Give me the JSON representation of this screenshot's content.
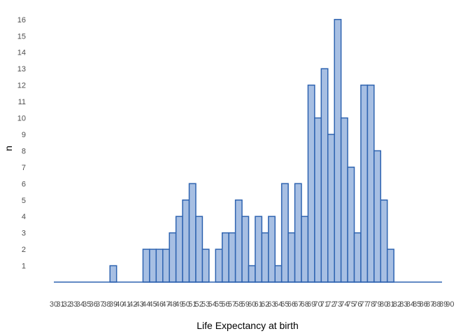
{
  "chart_data": {
    "type": "bar",
    "title": "",
    "xlabel": "Life Expectancy at birth",
    "ylabel": "n",
    "categories": [
      "30",
      "31",
      "32",
      "33",
      "34",
      "35",
      "36",
      "37",
      "38",
      "39",
      "40",
      "41",
      "42",
      "43",
      "44",
      "45",
      "46",
      "47",
      "48",
      "49",
      "50",
      "51",
      "52",
      "53",
      "54",
      "55",
      "56",
      "57",
      "58",
      "59",
      "60",
      "61",
      "62",
      "63",
      "64",
      "65",
      "66",
      "67",
      "68",
      "69",
      "70",
      "71",
      "72",
      "73",
      "74",
      "75",
      "76",
      "77",
      "78",
      "79",
      "80",
      "81",
      "82",
      "83",
      "84",
      "85",
      "86",
      "87",
      "88",
      "89",
      "90"
    ],
    "values": [
      0,
      0,
      0,
      0,
      0,
      0,
      0,
      0,
      0,
      1,
      0,
      0,
      0,
      0,
      2,
      2,
      2,
      2,
      3,
      4,
      5,
      6,
      4,
      2,
      0,
      2,
      3,
      3,
      5,
      4,
      1,
      4,
      3,
      4,
      1,
      6,
      3,
      6,
      4,
      12,
      10,
      13,
      9,
      16,
      10,
      7,
      3,
      12,
      12,
      8,
      5,
      2,
      0,
      0,
      0,
      0,
      0,
      0,
      0,
      0,
      0
    ],
    "y_ticks": [
      "1",
      "2",
      "3",
      "4",
      "5",
      "6",
      "7",
      "8",
      "9",
      "10",
      "11",
      "12",
      "13",
      "14",
      "15",
      "16"
    ],
    "ylim": [
      0,
      16
    ],
    "grid": false,
    "legend": "none",
    "bar_fill": "#a7bfe3",
    "bar_stroke": "#2e63b0"
  }
}
